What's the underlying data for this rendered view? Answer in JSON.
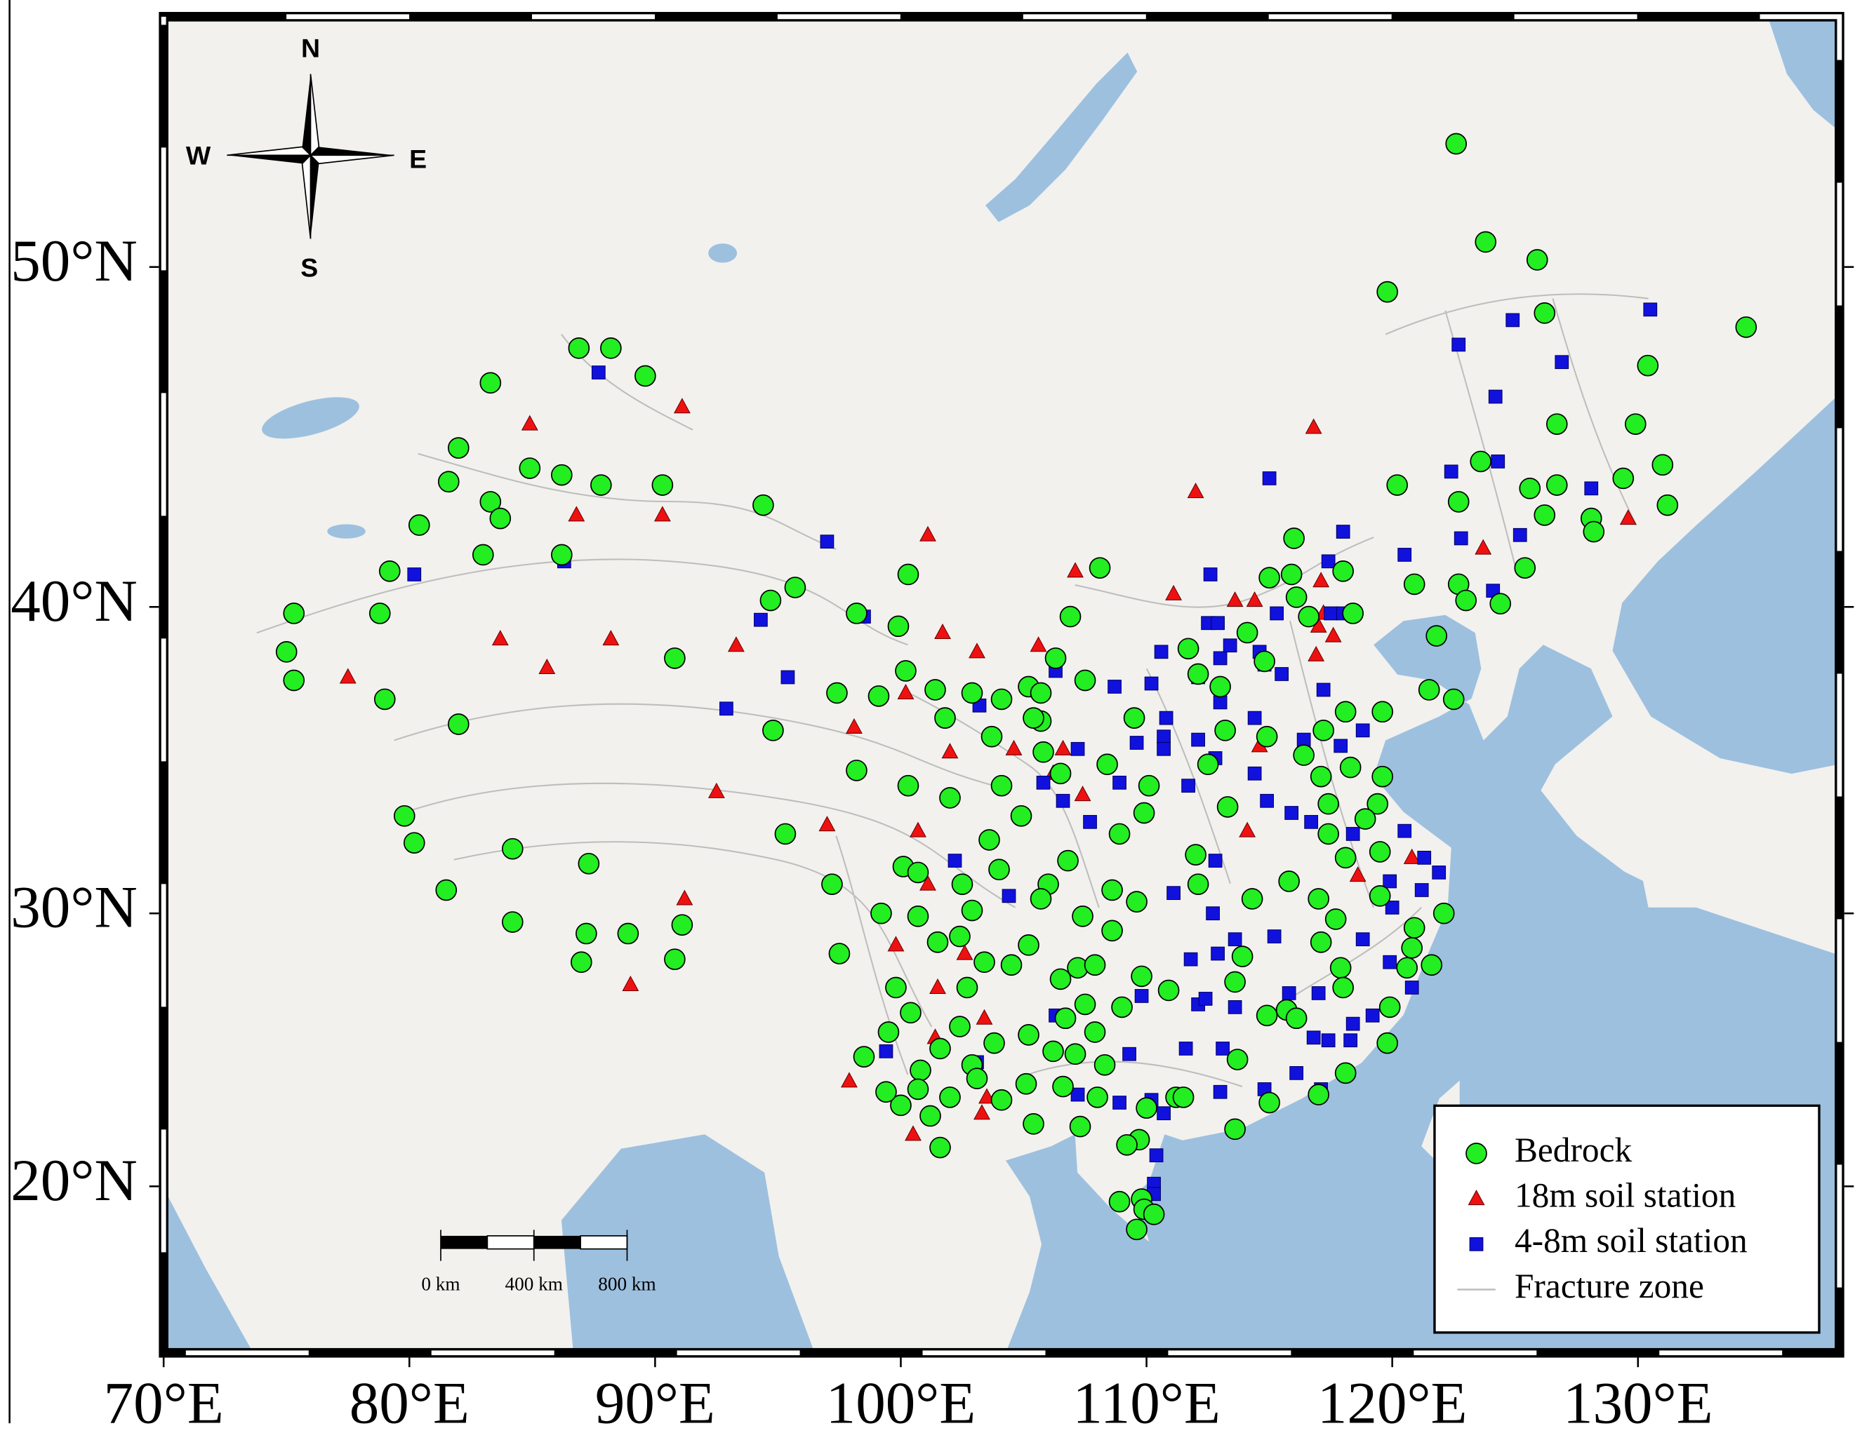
{
  "chart_data": {
    "type": "map",
    "xlim": [
      70,
      138.2
    ],
    "ylim": [
      13.2,
      56.8
    ],
    "xticks": [
      {
        "value": 70,
        "label": "70°E"
      },
      {
        "value": 80,
        "label": "80°E"
      },
      {
        "value": 90,
        "label": "90°E"
      },
      {
        "value": 100,
        "label": "100°E"
      },
      {
        "value": 110,
        "label": "110°E"
      },
      {
        "value": 120,
        "label": "120°E"
      },
      {
        "value": 130,
        "label": "130°E"
      }
    ],
    "yticks": [
      {
        "value": 20,
        "label": "20°N"
      },
      {
        "value": 30,
        "label": "30°N"
      },
      {
        "value": 40,
        "label": "40°N"
      },
      {
        "value": 50,
        "label": "50°N"
      }
    ],
    "legend": "lower right",
    "series": [
      {
        "name": "Bedrock",
        "marker": "circle",
        "color": "#22ee22",
        "x": [
          122.6,
          123.8,
          125.9,
          119.8,
          126.2,
          134.4,
          130.4,
          126.7,
          129.9,
          131.0,
          129.4,
          120.2,
          123.6,
          125.6,
          126.7,
          122.7,
          131.2,
          126.2,
          128.1,
          128.2,
          125.4,
          120.9,
          122.7,
          123.0,
          124.4,
          121.8,
          121.5,
          122.5,
          116.0,
          115.0,
          115.9,
          118.0,
          118.4,
          116.1,
          116.6,
          114.8,
          113.0,
          111.7,
          114.1,
          118.1,
          119.6,
          117.2,
          116.4,
          118.3,
          117.1,
          119.6,
          117.4,
          119.4,
          118.9,
          117.4,
          114.9,
          113.2,
          112.1,
          112.5,
          113.3,
          110.1,
          109.5,
          112.0,
          112.1,
          114.3,
          118.1,
          119.5,
          119.5,
          117.0,
          115.8,
          122.1,
          120.9,
          120.8,
          121.6,
          120.6,
          119.9,
          119.8,
          117.7,
          117.1,
          117.9,
          118.0,
          115.7,
          114.9,
          116.1,
          113.9,
          113.6,
          113.7,
          115.0,
          118.1,
          117.0,
          113.6,
          110.0,
          109.7,
          109.2,
          109.8,
          108.9,
          109.9,
          110.3,
          109.6,
          111.2,
          111.5,
          108.3,
          107.9,
          107.1,
          106.2,
          105.2,
          103.8,
          102.4,
          101.6,
          100.8,
          100.7,
          100.0,
          99.4,
          99.5,
          98.5,
          101.6,
          101.2,
          102.0,
          102.9,
          103.1,
          104.1,
          105.1,
          105.4,
          107.3,
          106.6,
          108.0,
          106.5,
          107.2,
          107.9,
          106.7,
          107.5,
          109.0,
          109.8,
          110.9,
          108.6,
          107.4,
          109.6,
          108.6,
          106.0,
          105.7,
          106.8,
          105.2,
          104.5,
          102.9,
          102.5,
          102.4,
          100.7,
          101.5,
          100.4,
          99.8,
          99.2,
          97.2,
          97.5,
          100.1,
          100.7,
          103.4,
          102.7,
          104.0,
          103.6,
          104.9,
          104.1,
          100.3,
          102.0,
          98.2,
          95.3,
          94.8,
          94.7,
          95.7,
          98.2,
          99.9,
          100.2,
          97.4,
          99.1,
          101.4,
          101.8,
          102.9,
          104.1,
          103.7,
          105.2,
          105.7,
          105.7,
          105.8,
          106.3,
          106.9,
          107.5,
          106.5,
          105.4,
          108.4,
          108.9,
          109.9,
          108.1,
          100.3,
          90.8,
          94.4,
          90.3,
          87.8,
          86.2,
          84.9,
          86.9,
          88.2,
          89.6,
          83.3,
          82.0,
          81.6,
          83.3,
          83.7,
          80.4,
          83.0,
          86.2,
          79.2,
          78.8,
          75.3,
          75.0,
          75.3,
          79.0,
          82.0,
          79.8,
          80.2,
          81.5,
          84.2,
          87.3,
          84.2,
          87.2,
          87.0,
          88.9,
          91.1,
          90.8
        ],
        "y": [
          53.4,
          50.7,
          50.2,
          49.3,
          48.7,
          48.3,
          47.2,
          45.5,
          45.5,
          44.3,
          43.9,
          43.7,
          44.4,
          43.6,
          43.7,
          43.2,
          43.1,
          42.8,
          42.7,
          42.3,
          41.2,
          40.7,
          40.7,
          40.2,
          40.1,
          39.1,
          37.4,
          37.1,
          42.1,
          40.9,
          41.0,
          41.1,
          39.8,
          40.3,
          39.7,
          38.3,
          37.5,
          38.7,
          39.2,
          36.7,
          36.7,
          36.1,
          35.3,
          34.9,
          34.6,
          34.6,
          33.7,
          33.7,
          33.2,
          32.7,
          35.9,
          36.1,
          37.9,
          35.0,
          33.6,
          34.3,
          36.5,
          32.0,
          31.0,
          30.5,
          31.9,
          32.1,
          30.6,
          30.5,
          31.1,
          30.0,
          29.5,
          28.8,
          28.2,
          28.1,
          26.7,
          25.4,
          29.8,
          29.0,
          28.1,
          27.4,
          26.6,
          26.4,
          26.3,
          28.5,
          27.6,
          24.8,
          23.2,
          24.3,
          23.5,
          22.2,
          23.0,
          21.8,
          21.6,
          19.5,
          19.4,
          19.1,
          18.9,
          18.3,
          23.4,
          23.4,
          24.6,
          25.8,
          25.0,
          25.1,
          25.7,
          25.4,
          26.0,
          25.2,
          24.4,
          23.7,
          23.1,
          23.6,
          25.8,
          24.9,
          21.5,
          22.7,
          23.4,
          24.6,
          24.1,
          23.3,
          23.9,
          22.4,
          22.3,
          23.8,
          23.4,
          27.7,
          28.1,
          28.2,
          26.3,
          26.8,
          26.7,
          27.8,
          27.3,
          29.4,
          29.9,
          30.4,
          30.8,
          31.0,
          30.5,
          31.8,
          28.9,
          28.2,
          30.1,
          31.0,
          29.2,
          29.9,
          29.0,
          26.5,
          27.4,
          30.0,
          31.0,
          28.6,
          31.6,
          31.4,
          28.3,
          27.4,
          31.5,
          32.5,
          33.3,
          34.3,
          34.3,
          33.9,
          34.8,
          32.7,
          36.1,
          40.2,
          40.6,
          39.8,
          39.4,
          38.0,
          37.3,
          37.2,
          37.4,
          36.5,
          37.3,
          37.1,
          35.9,
          37.5,
          37.3,
          36.4,
          35.4,
          38.4,
          39.7,
          37.7,
          34.7,
          36.5,
          35.0,
          32.7,
          33.4,
          41.2,
          41.0,
          38.4,
          43.1,
          43.7,
          43.7,
          44.0,
          44.2,
          47.7,
          47.7,
          46.9,
          46.7,
          44.8,
          43.8,
          43.2,
          42.7,
          42.5,
          41.6,
          41.6,
          41.1,
          39.8,
          39.8,
          38.6,
          37.7,
          37.1,
          36.3,
          33.3,
          32.4,
          30.8,
          32.2,
          31.7,
          29.7,
          29.3,
          28.3,
          29.3,
          29.6,
          28.4
        ]
      },
      {
        "name": "18m soil station",
        "marker": "triangle",
        "color": "#ee1111",
        "x": [
          84.9,
          91.1,
          116.8,
          112.0,
          123.7,
          129.6,
          86.8,
          90.3,
          101.1,
          83.7,
          88.2,
          85.6,
          77.5,
          93.3,
          100.2,
          101.7,
          103.1,
          98.1,
          92.5,
          102.0,
          104.6,
          106.2,
          106.6,
          107.4,
          97.0,
          100.7,
          101.1,
          91.2,
          89.0,
          99.8,
          101.5,
          102.6,
          103.4,
          101.4,
          97.9,
          100.5,
          103.3,
          103.5,
          105.6,
          107.1,
          111.1,
          113.6,
          114.4,
          117.0,
          117.2,
          116.9,
          117.1,
          117.6,
          114.6,
          114.1,
          120.8,
          118.6
        ],
        "y": [
          45.5,
          46.0,
          45.4,
          43.5,
          41.8,
          42.7,
          42.8,
          42.8,
          42.2,
          39.0,
          39.0,
          38.1,
          37.8,
          38.8,
          37.3,
          39.2,
          38.6,
          36.2,
          34.1,
          35.4,
          35.5,
          34.7,
          35.5,
          34.0,
          33.0,
          32.8,
          31.0,
          30.5,
          27.5,
          28.9,
          27.4,
          28.6,
          26.3,
          25.6,
          24.0,
          22.0,
          22.8,
          23.4,
          38.8,
          41.1,
          40.4,
          40.2,
          40.2,
          39.4,
          39.8,
          38.5,
          40.8,
          39.1,
          35.6,
          32.8,
          31.9,
          31.3
        ]
      },
      {
        "name": "4-8m soil station",
        "marker": "square",
        "color": "#1111dd",
        "x": [
          87.7,
          80.2,
          86.3,
          97.0,
          94.3,
          98.5,
          92.9,
          95.4,
          103.2,
          106.3,
          107.2,
          105.8,
          106.6,
          107.7,
          108.9,
          108.7,
          109.6,
          110.2,
          110.8,
          110.7,
          110.7,
          112.1,
          110.6,
          112.1,
          112.5,
          112.9,
          112.6,
          113.0,
          113.0,
          113.4,
          114.4,
          114.6,
          114.8,
          115.5,
          115.3,
          117.4,
          117.5,
          118.0,
          118.0,
          115.0,
          120.5,
          122.8,
          124.1,
          125.2,
          122.4,
          124.3,
          124.2,
          122.7,
          124.9,
          126.9,
          130.5,
          128.1,
          117.2,
          118.8,
          117.9,
          116.4,
          115.9,
          116.7,
          118.4,
          120.5,
          121.3,
          121.9,
          121.2,
          119.9,
          120.0,
          118.8,
          119.9,
          120.8,
          119.2,
          118.4,
          118.3,
          116.8,
          117.4,
          117.1,
          116.1,
          114.8,
          113.0,
          113.1,
          112.1,
          112.4,
          113.6,
          111.8,
          112.9,
          111.6,
          112.7,
          111.1,
          112.8,
          113.6,
          115.2,
          115.8,
          117.0,
          114.9,
          114.4,
          111.7,
          112.8,
          109.8,
          109.3,
          108.9,
          110.2,
          110.7,
          110.4,
          110.3,
          110.3,
          107.2,
          106.3,
          104.4,
          102.2,
          99.4,
          103.1
        ],
        "y": [
          47.0,
          41.0,
          41.4,
          42.0,
          39.6,
          39.7,
          36.8,
          37.8,
          36.9,
          38.0,
          35.5,
          34.4,
          33.8,
          33.1,
          34.4,
          37.5,
          35.7,
          37.6,
          36.5,
          35.9,
          35.5,
          35.8,
          38.6,
          37.8,
          39.5,
          39.5,
          41.0,
          38.4,
          37.0,
          38.8,
          36.5,
          38.6,
          38.2,
          37.9,
          39.8,
          41.4,
          39.8,
          39.8,
          42.3,
          43.9,
          41.6,
          42.1,
          40.5,
          42.2,
          44.1,
          44.4,
          46.3,
          47.8,
          48.5,
          47.3,
          48.8,
          43.6,
          37.4,
          36.1,
          35.6,
          35.8,
          33.4,
          33.1,
          32.7,
          32.8,
          31.9,
          31.4,
          30.8,
          31.1,
          30.2,
          29.1,
          28.3,
          27.4,
          26.4,
          26.1,
          25.5,
          25.6,
          25.5,
          23.7,
          24.3,
          23.7,
          23.6,
          25.2,
          26.8,
          27.0,
          26.7,
          28.4,
          28.6,
          25.2,
          30.0,
          30.7,
          31.8,
          29.1,
          29.2,
          27.2,
          27.2,
          33.8,
          34.7,
          34.3,
          35.2,
          27.1,
          25.0,
          23.2,
          23.3,
          22.8,
          21.2,
          20.1,
          19.7,
          23.5,
          26.4,
          30.6,
          31.8,
          25.1,
          24.7
        ]
      }
    ],
    "fracture_zone": {
      "name": "Fracture zone",
      "color": "#bdbdbd"
    },
    "compass": {
      "north": "N",
      "south": "S",
      "west": "W",
      "east": "E"
    },
    "scale_bar": {
      "labels": [
        "0 km",
        "400 km",
        "800 km"
      ]
    }
  }
}
